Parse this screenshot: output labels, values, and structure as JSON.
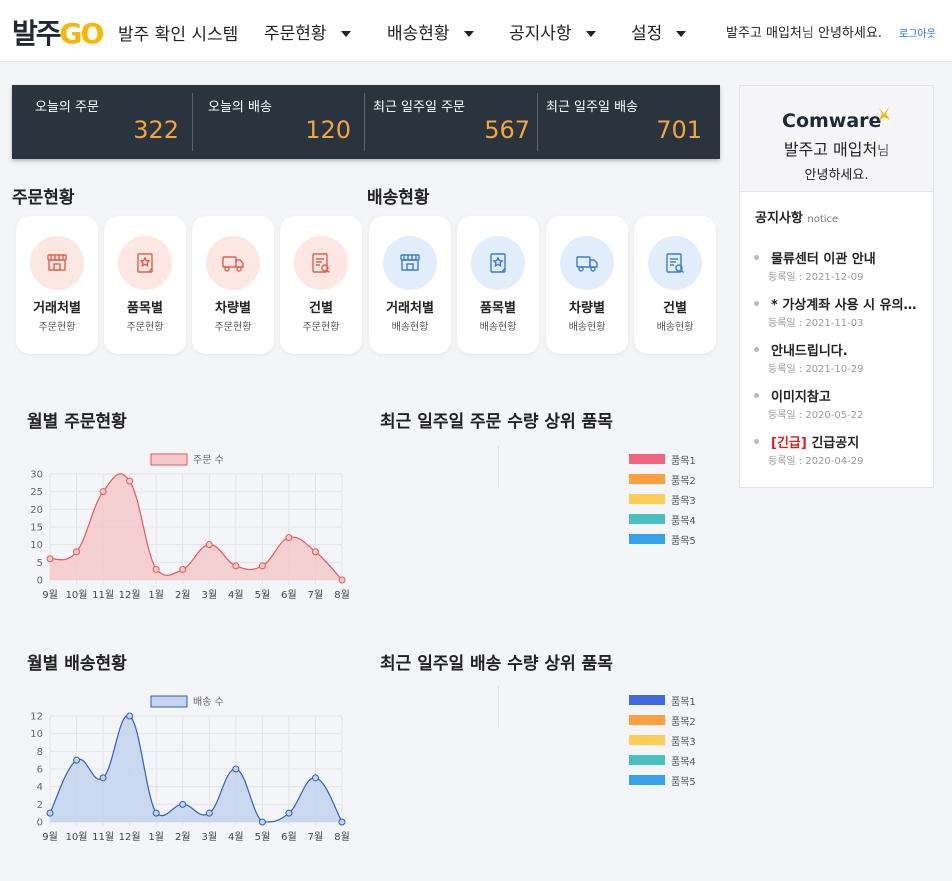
{
  "header": {
    "logo_k": "발주",
    "logo_go": "GO",
    "app_title": "발주 확인 시스템",
    "nav": [
      "주문현황",
      "배송현황",
      "공지사항",
      "설정"
    ],
    "greet_name": "발주고 매입처",
    "greet_nim": "님",
    "greet_rest": " 안녕하세요.",
    "logout": "로그아웃"
  },
  "summary": [
    {
      "label": "오늘의 주문",
      "value": "322"
    },
    {
      "label": "오늘의 배송",
      "value": "120"
    },
    {
      "label": "최근 일주일 주문",
      "value": "567"
    },
    {
      "label": "최근 일주일 배송",
      "value": "701"
    }
  ],
  "sections": {
    "order": "주문현황",
    "delivery": "배송현황"
  },
  "tiles": [
    {
      "title": "거래처별",
      "sub": "주문현황",
      "icon": "store-icon",
      "color": "red"
    },
    {
      "title": "품목별",
      "sub": "주문현황",
      "icon": "product-icon",
      "color": "red"
    },
    {
      "title": "차량별",
      "sub": "주문현황",
      "icon": "truck-icon",
      "color": "red"
    },
    {
      "title": "건별",
      "sub": "주문현황",
      "icon": "document-search-icon",
      "color": "red"
    },
    {
      "title": "거래처별",
      "sub": "배송현황",
      "icon": "store-icon",
      "color": "blue"
    },
    {
      "title": "품목별",
      "sub": "배송현황",
      "icon": "product-icon",
      "color": "blue"
    },
    {
      "title": "차량별",
      "sub": "배송현황",
      "icon": "truck-icon",
      "color": "blue"
    },
    {
      "title": "건별",
      "sub": "배송현황",
      "icon": "document-search-icon",
      "color": "blue"
    }
  ],
  "charts": {
    "monthly_order_title": "월별 주문현황",
    "monthly_delivery_title": "월별 배송현황",
    "top_order_title": "최근 일주일 주문 수량 상위 품목",
    "top_delivery_title": "최근 일주일 배송 수량 상위 품목"
  },
  "chart_data": [
    {
      "type": "area",
      "title": "월별 주문현황",
      "categories": [
        "9월",
        "10월",
        "11월",
        "12월",
        "1월",
        "2월",
        "3월",
        "4월",
        "5월",
        "6월",
        "7월",
        "8월"
      ],
      "series": [
        {
          "name": "주문 수",
          "values": [
            6,
            8,
            25,
            28,
            3,
            3,
            10,
            4,
            4,
            12,
            8,
            0
          ]
        }
      ],
      "ylim": [
        0,
        30
      ],
      "yticks": [
        0,
        5,
        10,
        15,
        20,
        25,
        30
      ],
      "color": "#e45b5b",
      "fill": "#f5c9c9",
      "grid": true,
      "legend": "top"
    },
    {
      "type": "area",
      "title": "월별 배송현황",
      "categories": [
        "9월",
        "10월",
        "11월",
        "12월",
        "1월",
        "2월",
        "3월",
        "4월",
        "5월",
        "6월",
        "7월",
        "8월"
      ],
      "series": [
        {
          "name": "배송 수",
          "values": [
            1,
            7,
            5,
            12,
            1,
            2,
            1,
            6,
            0,
            1,
            5,
            0
          ]
        }
      ],
      "ylim": [
        0,
        12
      ],
      "yticks": [
        0,
        2,
        4,
        6,
        8,
        10,
        12
      ],
      "color": "#2f5fbf",
      "fill": "#c3d4ee",
      "grid": true,
      "legend": "top"
    },
    {
      "type": "pie",
      "title": "최근 일주일 주문 수량 상위 품목",
      "categories": [
        "품목1",
        "품목2",
        "품목3",
        "품목4",
        "품목5"
      ],
      "colors": [
        "#f2657f",
        "#ff9f40",
        "#ffcd56",
        "#4bc0c0",
        "#36a2eb"
      ],
      "legend": "right"
    },
    {
      "type": "pie",
      "title": "최근 일주일 배송 수량 상위 품목",
      "categories": [
        "품목1",
        "품목2",
        "품목3",
        "품목4",
        "품목5"
      ],
      "colors": [
        "#4169e1",
        "#ff9f40",
        "#ffcd56",
        "#4bc0c0",
        "#36a2eb"
      ],
      "legend": "right"
    }
  ],
  "notice": {
    "company": "Comware",
    "buyer": "발주고 매입처",
    "buyer_nim": "님",
    "hello": "안녕하세요.",
    "head": "공지사항",
    "head_sub": "notice",
    "items": [
      {
        "tag": "",
        "title": "물류센터 이관 안내",
        "date": "등록일 : 2021-12-09"
      },
      {
        "tag": "",
        "title": "* 가상계좌 사용 시 유의사항",
        "date": "등록일 : 2021-11-03"
      },
      {
        "tag": "",
        "title": "안내드립니다.",
        "date": "등록일 : 2021-10-29"
      },
      {
        "tag": "",
        "title": "이미지참고",
        "date": "등록일 : 2020-05-22"
      },
      {
        "tag": "[긴급]",
        "title": " 긴급공지",
        "date": "등록일 : 2020-04-29"
      }
    ]
  }
}
